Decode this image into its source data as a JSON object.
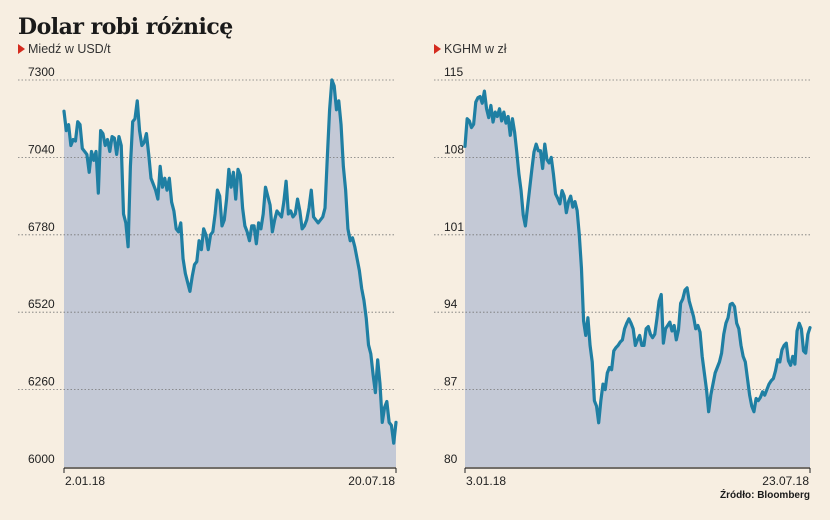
{
  "title": "Dolar robi różnicę",
  "source": "Źródło: Bloomberg",
  "colors": {
    "line": "#1f7fa3",
    "area": "#c4c9d6",
    "grid": "#777777",
    "marker": "#d42b1e",
    "background": "#f7eee1"
  },
  "chart_data": [
    {
      "type": "area",
      "subtitle": "Miedź w USD/t",
      "ylim": [
        6000,
        7300
      ],
      "yticks": [
        6000,
        6260,
        6520,
        6780,
        7040,
        7300
      ],
      "x_labels": {
        "start": "2.01.18",
        "end": "20.07.18"
      },
      "grid": true,
      "values": [
        7195,
        7130,
        7150,
        7080,
        7100,
        7095,
        7160,
        7150,
        7070,
        7060,
        7050,
        6990,
        7060,
        7030,
        7060,
        6920,
        7130,
        7120,
        7080,
        7100,
        7060,
        7110,
        7105,
        7050,
        7110,
        7080,
        6850,
        6820,
        6740,
        7010,
        7160,
        7170,
        7230,
        7130,
        7080,
        7090,
        7120,
        7050,
        6970,
        6950,
        6930,
        6900,
        7010,
        6940,
        6970,
        6930,
        6970,
        6890,
        6860,
        6800,
        6790,
        6820,
        6700,
        6650,
        6620,
        6590,
        6640,
        6680,
        6690,
        6760,
        6730,
        6800,
        6780,
        6730,
        6780,
        6790,
        6850,
        6930,
        6910,
        6810,
        6830,
        6900,
        7000,
        6940,
        6990,
        6900,
        7000,
        6980,
        6870,
        6810,
        6790,
        6760,
        6810,
        6810,
        6750,
        6820,
        6800,
        6850,
        6940,
        6910,
        6880,
        6790,
        6830,
        6860,
        6850,
        6840,
        6890,
        6960,
        6850,
        6860,
        6840,
        6850,
        6900,
        6860,
        6800,
        6810,
        6830,
        6870,
        6930,
        6840,
        6830,
        6820,
        6830,
        6840,
        6870,
        7040,
        7200,
        7300,
        7280,
        7200,
        7230,
        7150,
        7010,
        6930,
        6800,
        6760,
        6770,
        6740,
        6700,
        6660,
        6600,
        6560,
        6500,
        6410,
        6380,
        6310,
        6250,
        6360,
        6280,
        6150,
        6200,
        6220,
        6150,
        6140,
        6080,
        6150
      ]
    },
    {
      "type": "area",
      "subtitle": "KGHM w zł",
      "ylim": [
        80,
        115
      ],
      "yticks": [
        80,
        87,
        94,
        101,
        108,
        115
      ],
      "x_labels": {
        "start": "3.01.18",
        "end": "23.07.18"
      },
      "grid": true,
      "values": [
        109.0,
        111.5,
        111.3,
        110.7,
        111.0,
        113.0,
        113.4,
        113.5,
        112.9,
        114.0,
        112.4,
        111.6,
        112.7,
        111.2,
        112.1,
        111.7,
        112.4,
        111.3,
        112.1,
        111.1,
        111.7,
        110.0,
        111.5,
        110.3,
        108.5,
        106.5,
        105.0,
        102.8,
        101.8,
        103.5,
        105.2,
        106.9,
        108.5,
        109.2,
        108.6,
        108.6,
        107.0,
        109.2,
        107.8,
        107.5,
        108.0,
        106.5,
        104.7,
        104.3,
        103.8,
        105.0,
        104.5,
        103.0,
        104.0,
        104.5,
        103.5,
        104.0,
        103.2,
        101.0,
        98.0,
        93.2,
        91.9,
        93.5,
        91.0,
        89.5,
        86.0,
        85.5,
        84.0,
        86.0,
        87.5,
        87.0,
        88.5,
        89.0,
        88.8,
        90.5,
        90.8,
        91.0,
        91.3,
        91.5,
        92.5,
        93.0,
        93.4,
        93.0,
        92.5,
        91.0,
        91.5,
        91.9,
        91.0,
        91.0,
        92.5,
        92.7,
        92.0,
        91.7,
        92.0,
        93.4,
        95.0,
        95.6,
        91.2,
        92.5,
        92.8,
        93.1,
        92.3,
        92.8,
        91.5,
        92.4,
        94.8,
        95.2,
        96.0,
        96.2,
        95.0,
        94.3,
        93.6,
        92.5,
        92.8,
        92.2,
        90.0,
        88.5,
        87.0,
        85.0,
        86.5,
        87.5,
        88.5,
        89.0,
        89.5,
        90.3,
        92.0,
        93.0,
        93.5,
        94.7,
        94.8,
        94.5,
        93.0,
        92.5,
        91.0,
        90.0,
        89.5,
        88.0,
        86.5,
        85.5,
        85.0,
        86.2,
        86.0,
        86.3,
        86.8,
        86.5,
        87.0,
        87.5,
        87.8,
        88.0,
        88.7,
        89.7,
        89.5,
        90.6,
        91.0,
        91.2,
        89.6,
        89.2,
        90.0,
        89.3,
        92.3,
        93.0,
        92.5,
        90.5,
        90.3,
        92.0,
        92.6
      ]
    }
  ]
}
